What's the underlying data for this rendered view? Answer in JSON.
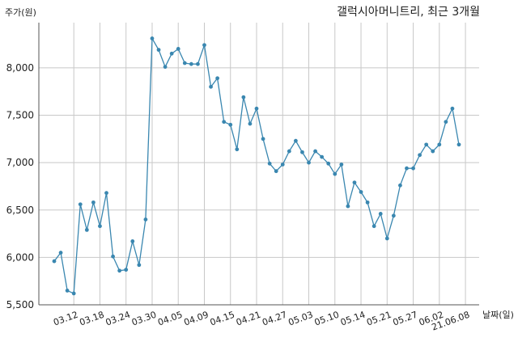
{
  "chart_data": {
    "type": "line",
    "title": "갤럭시아머니트리, 최근 3개월",
    "ylabel": "주가(원)",
    "xlabel": "날짜(일)",
    "ylim": [
      5500,
      8400
    ],
    "yticks": [
      5500,
      6000,
      6500,
      7000,
      7500,
      8000
    ],
    "ytick_labels": [
      "5,500",
      "6,000",
      "6,500",
      "7,000",
      "7,500",
      "8,000"
    ],
    "xtick_labels": [
      "03.12",
      "03.18",
      "03.24",
      "03.30",
      "04.05",
      "04.09",
      "04.15",
      "04.21",
      "04.27",
      "05.03",
      "05.10",
      "05.14",
      "05.21",
      "05.27",
      "06.02",
      "21.06.08"
    ],
    "xtick_positions": [
      3,
      7,
      11,
      15,
      19,
      23,
      27,
      31,
      35,
      39,
      43,
      47,
      51,
      55,
      59,
      63
    ],
    "grid": true,
    "line_color": "#3a87b0",
    "series": [
      {
        "name": "",
        "values": [
          5960,
          6050,
          5650,
          5620,
          6560,
          6290,
          6580,
          6330,
          6680,
          6010,
          5860,
          5870,
          6170,
          5920,
          6400,
          8310,
          8190,
          8010,
          8150,
          8200,
          8050,
          8040,
          8040,
          8240,
          7800,
          7890,
          7430,
          7400,
          7140,
          7690,
          7410,
          7570,
          7250,
          6990,
          6910,
          6980,
          7120,
          7230,
          7110,
          7000,
          7120,
          7060,
          6990,
          6880,
          6980,
          6540,
          6790,
          6690,
          6580,
          6330,
          6460,
          6200,
          6440,
          6760,
          6940,
          6940,
          7080,
          7190,
          7120,
          7190,
          7430,
          7570,
          7190
        ]
      }
    ]
  }
}
